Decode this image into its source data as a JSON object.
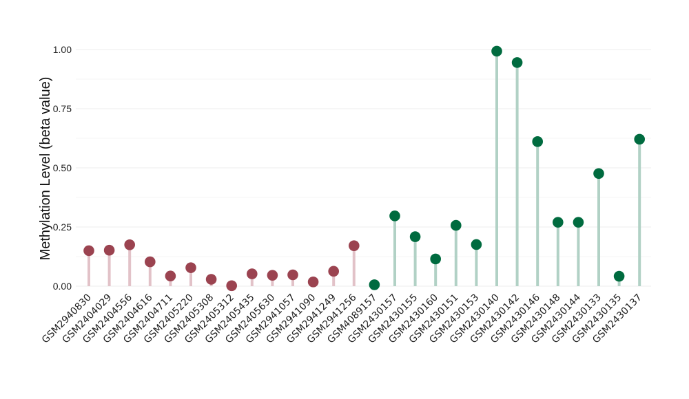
{
  "chart_data": {
    "type": "lollipop",
    "title": "",
    "xlabel": "",
    "ylabel": "Methylation Level (beta value)",
    "ylim": [
      0,
      1.0
    ],
    "yticks": [
      0.0,
      0.25,
      0.5,
      0.75,
      1.0
    ],
    "ytick_labels": [
      "0.00",
      "0.25",
      "0.50",
      "0.75",
      "1.00"
    ],
    "grid": true,
    "legend": "none",
    "categories": [
      "GSM2940830",
      "GSM2404029",
      "GSM2404556",
      "GSM2404616",
      "GSM2404711",
      "GSM2405220",
      "GSM2405308",
      "GSM2405312",
      "GSM2405435",
      "GSM2405630",
      "GSM2941057",
      "GSM2941090",
      "GSM2941249",
      "GSM2941256",
      "GSM4089157",
      "GSM2430157",
      "GSM2430155",
      "GSM2430160",
      "GSM2430151",
      "GSM2430153",
      "GSM2430140",
      "GSM2430142",
      "GSM2430146",
      "GSM2430148",
      "GSM2430144",
      "GSM2430133",
      "GSM2430135",
      "GSM2430137"
    ],
    "values": [
      0.15,
      0.152,
      0.175,
      0.103,
      0.043,
      0.078,
      0.029,
      0.002,
      0.052,
      0.046,
      0.048,
      0.018,
      0.063,
      0.171,
      0.006,
      0.297,
      0.209,
      0.115,
      0.257,
      0.176,
      0.993,
      0.945,
      0.611,
      0.27,
      0.27,
      0.476,
      0.042,
      0.621
    ],
    "group_index": [
      0,
      0,
      0,
      0,
      0,
      0,
      0,
      0,
      0,
      0,
      0,
      0,
      0,
      0,
      1,
      1,
      1,
      1,
      1,
      1,
      1,
      1,
      1,
      1,
      1,
      1,
      1,
      1
    ],
    "group_colors": [
      {
        "point": "#9b4350",
        "stem": "#e2c2c8"
      },
      {
        "point": "#006b3f",
        "stem": "#b1d1c5"
      }
    ],
    "grid_color": "#ececec"
  }
}
